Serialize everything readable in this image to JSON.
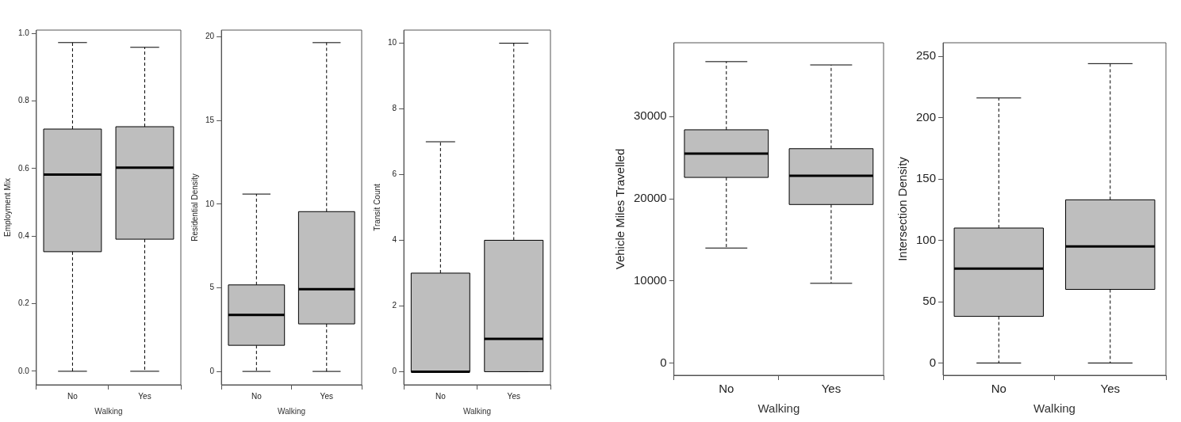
{
  "chart_data": [
    {
      "type": "box",
      "categories": [
        "No",
        "Yes"
      ],
      "xlabel": "Walking",
      "ylabel": "Employment Mix",
      "ylim": [
        -0.04,
        1.01
      ],
      "yticks": [
        {
          "value": 0,
          "label": "0.0"
        },
        {
          "value": 0.2,
          "label": "0.2"
        },
        {
          "value": 0.4,
          "label": "0.4"
        },
        {
          "value": 0.6,
          "label": "0.6"
        },
        {
          "value": 0.8,
          "label": "0.8"
        },
        {
          "value": 1,
          "label": "1.0"
        }
      ],
      "color": "#bebebe",
      "grid": false,
      "legend": false,
      "boxes": [
        {
          "low": 0,
          "q1": 0.354,
          "median": 0.582,
          "q3": 0.717,
          "high": 0.973
        },
        {
          "low": 0,
          "q1": 0.391,
          "median": 0.603,
          "q3": 0.724,
          "high": 0.959
        }
      ]
    },
    {
      "type": "box",
      "categories": [
        "No",
        "Yes"
      ],
      "xlabel": "Walking",
      "ylabel": "Residential Density",
      "ylim": [
        -0.8,
        20.4
      ],
      "yticks": [
        0,
        5,
        10,
        15,
        20
      ],
      "color": "#bebebe",
      "grid": false,
      "legend": false,
      "boxes": [
        {
          "low": 0,
          "q1": 1.56,
          "median": 3.38,
          "q3": 5.17,
          "high": 10.6
        },
        {
          "low": 0,
          "q1": 2.84,
          "median": 4.92,
          "q3": 9.55,
          "high": 19.65
        }
      ]
    },
    {
      "type": "box",
      "categories": [
        "No",
        "Yes"
      ],
      "xlabel": "Walking",
      "ylabel": "Transit Count",
      "ylim": [
        -0.4,
        10.4
      ],
      "yticks": [
        0,
        2,
        4,
        6,
        8,
        10
      ],
      "color": "#bebebe",
      "grid": false,
      "legend": false,
      "boxes": [
        {
          "low": 0,
          "q1": 0,
          "median": 0,
          "q3": 3,
          "high": 7
        },
        {
          "low": 0,
          "q1": 0,
          "median": 1,
          "q3": 4,
          "high": 10
        }
      ]
    },
    {
      "type": "box",
      "categories": [
        "No",
        "Yes"
      ],
      "xlabel": "Walking",
      "ylabel": "Vehicle Miles Travelled",
      "ylim": [
        -1500,
        39000
      ],
      "yticks": [
        0,
        10000,
        20000,
        30000
      ],
      "color": "#bebebe",
      "grid": false,
      "legend": false,
      "boxes": [
        {
          "low": 14000,
          "q1": 22600,
          "median": 25500,
          "q3": 28400,
          "high": 36700
        },
        {
          "low": 9700,
          "q1": 19300,
          "median": 22800,
          "q3": 26100,
          "high": 36300
        }
      ]
    },
    {
      "type": "box",
      "categories": [
        "No",
        "Yes"
      ],
      "xlabel": "Walking",
      "ylabel": "Intersection Density",
      "ylim": [
        -10,
        261
      ],
      "yticks": [
        0,
        50,
        100,
        150,
        200,
        250
      ],
      "color": "#bebebe",
      "grid": false,
      "legend": false,
      "boxes": [
        {
          "low": 0,
          "q1": 38,
          "median": 77,
          "q3": 110,
          "high": 216
        },
        {
          "low": 0,
          "q1": 60,
          "median": 95,
          "q3": 133,
          "high": 244
        }
      ]
    }
  ]
}
